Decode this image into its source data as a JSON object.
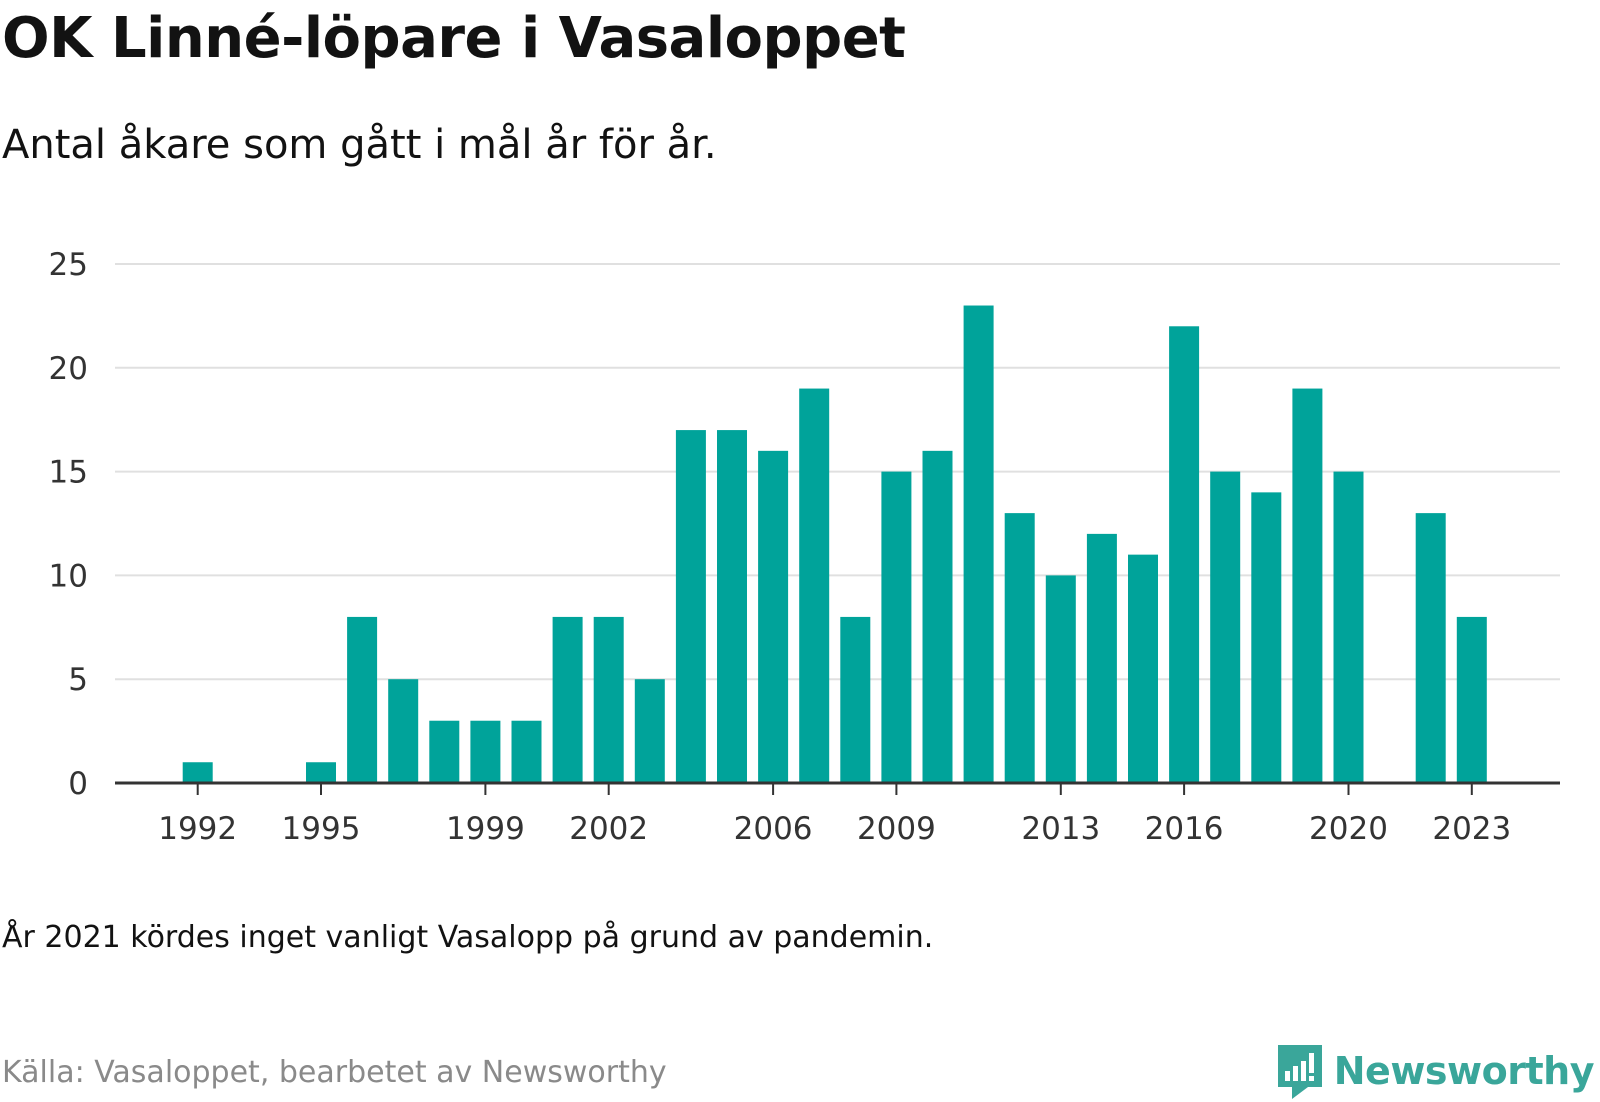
{
  "title": "OK Linné-löpare i Vasaloppet",
  "subtitle": "Antal åkare som gått i mål år för år.",
  "note": "År 2021 kördes inget vanligt Vasalopp på grund av pandemin.",
  "source": "Källa: Vasaloppet, bearbetet av Newsworthy",
  "brand": {
    "name": "Newsworthy",
    "icon": "newsworthy-logo-icon",
    "color": "#3aa69a"
  },
  "chart_data": {
    "type": "bar",
    "categories": [
      1990,
      1991,
      1992,
      1993,
      1994,
      1995,
      1996,
      1997,
      1998,
      1999,
      2000,
      2001,
      2002,
      2003,
      2004,
      2005,
      2006,
      2007,
      2008,
      2009,
      2010,
      2011,
      2012,
      2013,
      2014,
      2015,
      2016,
      2017,
      2018,
      2019,
      2020,
      2021,
      2022,
      2023
    ],
    "values": [
      0,
      0,
      1,
      0,
      0,
      1,
      8,
      5,
      3,
      3,
      3,
      8,
      8,
      5,
      17,
      17,
      16,
      19,
      8,
      15,
      16,
      23,
      13,
      10,
      12,
      11,
      22,
      15,
      14,
      19,
      15,
      0,
      13,
      8
    ],
    "x_tick_labels": [
      "1992",
      "1995",
      "1999",
      "2002",
      "2006",
      "2009",
      "2013",
      "2016",
      "2020",
      "2023"
    ],
    "y_tick_labels": [
      "0",
      "5",
      "10",
      "15",
      "20",
      "25"
    ],
    "ylim": [
      0,
      25
    ],
    "xlabel": "",
    "ylabel": "",
    "grid": true,
    "legend": "none",
    "bar_color": "#00a39a",
    "grid_color": "#e0e0e0",
    "axis_color": "#333333"
  }
}
